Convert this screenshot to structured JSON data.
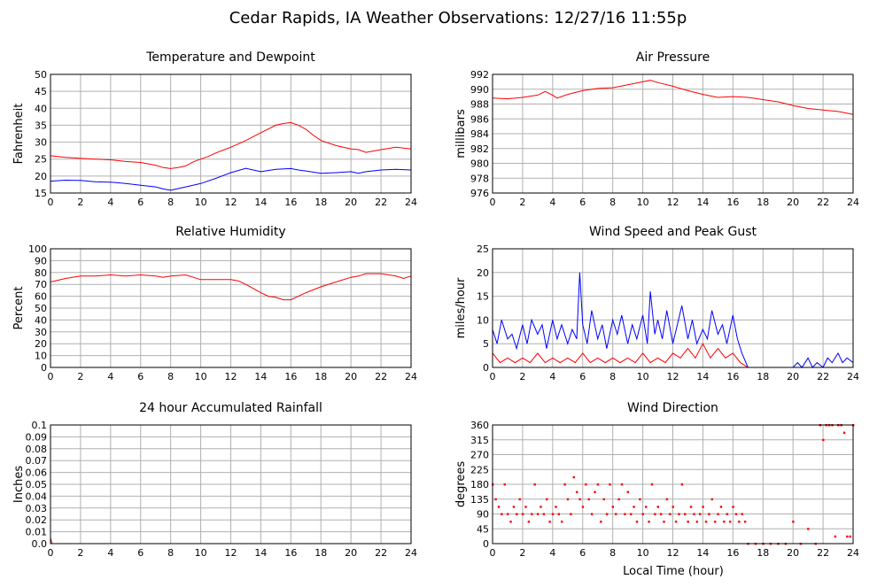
{
  "page_title": "Cedar Rapids, IA Weather Observations: 12/27/16 11:55p",
  "x_axis_label": "Local Time (hour)",
  "chart_data": [
    {
      "type": "line",
      "title": "Temperature and Dewpoint",
      "ylabel": "Fahrenheit",
      "xlim": [
        0,
        24
      ],
      "ylim": [
        15,
        50
      ],
      "x_ticks": [
        0,
        2,
        4,
        6,
        8,
        10,
        12,
        14,
        16,
        18,
        20,
        22,
        24
      ],
      "y_ticks": [
        15,
        20,
        25,
        30,
        35,
        40,
        45,
        50
      ],
      "grid": true,
      "series": [
        {
          "color": "#ff0000",
          "x": [
            0,
            1,
            2,
            3,
            4,
            5,
            6,
            7,
            7.5,
            8,
            8.5,
            9,
            9.5,
            10,
            10.5,
            11,
            12,
            13,
            14,
            15,
            15.5,
            16,
            16.5,
            17,
            17.5,
            18,
            19,
            20,
            20.5,
            21,
            22,
            23,
            24
          ],
          "y": [
            26,
            25.5,
            25.2,
            25,
            24.8,
            24.3,
            24,
            23.2,
            22.5,
            22.2,
            22.5,
            23,
            24.2,
            25,
            25.8,
            26.8,
            28.5,
            30.5,
            32.8,
            35,
            35.5,
            35.8,
            35,
            33.8,
            32,
            30.5,
            29,
            28,
            27.8,
            27,
            27.8,
            28.5,
            28
          ]
        },
        {
          "color": "#0000ff",
          "x": [
            0,
            1,
            2,
            3,
            4,
            5,
            6,
            7,
            7.5,
            8,
            8.5,
            9,
            10,
            11,
            12,
            13,
            14,
            15,
            16,
            16.5,
            17,
            18,
            19,
            20,
            20.5,
            21,
            22,
            23,
            24
          ],
          "y": [
            18.5,
            18.8,
            18.7,
            18.3,
            18.2,
            17.8,
            17.3,
            16.8,
            16.2,
            15.8,
            16.3,
            16.8,
            17.8,
            19.3,
            21,
            22.3,
            21.3,
            22,
            22.2,
            21.8,
            21.5,
            20.8,
            21,
            21.3,
            20.8,
            21.3,
            21.8,
            22,
            21.8
          ]
        }
      ]
    },
    {
      "type": "line",
      "title": "Air Pressure",
      "ylabel": "millibars",
      "xlim": [
        0,
        24
      ],
      "ylim": [
        976,
        992
      ],
      "x_ticks": [
        0,
        2,
        4,
        6,
        8,
        10,
        12,
        14,
        16,
        18,
        20,
        22,
        24
      ],
      "y_ticks": [
        976,
        978,
        980,
        982,
        984,
        986,
        988,
        990,
        992
      ],
      "grid": true,
      "series": [
        {
          "color": "#ff0000",
          "x": [
            0,
            1,
            2,
            3,
            3.5,
            4,
            4.3,
            5,
            6,
            7,
            8,
            9,
            10,
            10.5,
            11,
            12,
            13,
            14,
            15,
            16,
            17,
            18,
            19,
            20,
            21,
            22,
            23,
            24
          ],
          "y": [
            988.8,
            988.7,
            988.9,
            989.2,
            989.7,
            989.2,
            988.8,
            989.3,
            989.8,
            990.1,
            990.2,
            990.6,
            991.0,
            991.2,
            990.9,
            990.4,
            989.8,
            989.3,
            988.9,
            989.0,
            988.9,
            988.6,
            988.3,
            987.8,
            987.4,
            987.2,
            987.0,
            986.6
          ]
        }
      ]
    },
    {
      "type": "line",
      "title": "Relative Humidity",
      "ylabel": "Percent",
      "xlim": [
        0,
        24
      ],
      "ylim": [
        0,
        100
      ],
      "x_ticks": [
        0,
        2,
        4,
        6,
        8,
        10,
        12,
        14,
        16,
        18,
        20,
        22,
        24
      ],
      "y_ticks": [
        0,
        10,
        20,
        30,
        40,
        50,
        60,
        70,
        80,
        90,
        100
      ],
      "grid": true,
      "series": [
        {
          "color": "#ff0000",
          "x": [
            0,
            1,
            2,
            3,
            4,
            5,
            6,
            7,
            7.5,
            8,
            9,
            10,
            11,
            12,
            12.5,
            13,
            14,
            14.5,
            15,
            15.5,
            16,
            16.5,
            17,
            18,
            19,
            20,
            20.5,
            21,
            22,
            23,
            23.5,
            24
          ],
          "y": [
            72,
            75,
            77,
            77,
            78,
            77,
            78,
            77,
            76,
            77,
            78,
            74,
            74,
            74,
            73,
            70,
            63,
            60,
            59,
            57,
            57,
            60,
            63,
            68,
            72,
            76,
            77,
            79,
            79,
            77,
            75,
            77
          ]
        }
      ]
    },
    {
      "type": "line",
      "title": "Wind Speed and Peak Gust",
      "ylabel": "miles/hour",
      "xlim": [
        0,
        24
      ],
      "ylim": [
        0,
        25
      ],
      "x_ticks": [
        0,
        2,
        4,
        6,
        8,
        10,
        12,
        14,
        16,
        18,
        20,
        22,
        24
      ],
      "y_ticks": [
        0,
        5,
        10,
        15,
        20,
        25
      ],
      "grid": true,
      "series": [
        {
          "color": "#0000ff",
          "x": [
            0,
            0.3,
            0.6,
            1,
            1.3,
            1.6,
            2,
            2.3,
            2.6,
            3,
            3.3,
            3.6,
            4,
            4.3,
            4.6,
            5,
            5.3,
            5.6,
            5.8,
            6,
            6.3,
            6.6,
            7,
            7.3,
            7.6,
            8,
            8.3,
            8.6,
            9,
            9.3,
            9.6,
            10,
            10.3,
            10.5,
            10.8,
            11,
            11.3,
            11.6,
            12,
            12.3,
            12.6,
            13,
            13.3,
            13.6,
            14,
            14.3,
            14.6,
            15,
            15.3,
            15.6,
            16,
            16.3,
            16.6,
            17,
            17.5,
            18,
            18.5,
            19,
            19.5,
            20,
            20.3,
            20.6,
            21,
            21.3,
            21.6,
            22,
            22.3,
            22.6,
            23,
            23.3,
            23.6,
            24
          ],
          "y": [
            8,
            5,
            10,
            6,
            7,
            4,
            9,
            5,
            10,
            7,
            9,
            4,
            10,
            6,
            9,
            5,
            8,
            6,
            20,
            9,
            5,
            12,
            6,
            9,
            4,
            10,
            7,
            11,
            5,
            9,
            6,
            11,
            5,
            16,
            7,
            10,
            6,
            12,
            5,
            9,
            13,
            6,
            10,
            5,
            8,
            6,
            12,
            7,
            9,
            5,
            11,
            6,
            3,
            0,
            0,
            0,
            0,
            0,
            0,
            0,
            1,
            0,
            2,
            0,
            1,
            0,
            2,
            1,
            3,
            1,
            2,
            1
          ]
        },
        {
          "color": "#ff0000",
          "x": [
            0,
            0.5,
            1,
            1.5,
            2,
            2.5,
            3,
            3.5,
            4,
            4.5,
            5,
            5.5,
            6,
            6.5,
            7,
            7.5,
            8,
            8.5,
            9,
            9.5,
            10,
            10.5,
            11,
            11.5,
            12,
            12.5,
            13,
            13.5,
            14,
            14.5,
            15,
            15.5,
            16,
            16.5,
            17
          ],
          "y": [
            3,
            1,
            2,
            1,
            2,
            1,
            3,
            1,
            2,
            1,
            2,
            1,
            3,
            1,
            2,
            1,
            2,
            1,
            2,
            1,
            3,
            1,
            2,
            1,
            3,
            2,
            4,
            2,
            5,
            2,
            4,
            2,
            3,
            1,
            0
          ]
        }
      ]
    },
    {
      "type": "line",
      "title": "24 hour Accumulated Rainfall",
      "ylabel": "Inches",
      "xlim": [
        0,
        24
      ],
      "ylim": [
        0,
        0.1
      ],
      "x_ticks": [
        0,
        2,
        4,
        6,
        8,
        10,
        12,
        14,
        16,
        18,
        20,
        22,
        24
      ],
      "y_ticks": [
        "0.0",
        "0.01",
        "0.02",
        "0.03",
        "0.04",
        "0.05",
        "0.06",
        "0.07",
        "0.08",
        "0.09",
        "0.1"
      ],
      "grid": true,
      "series": [
        {
          "color": "#ff0000",
          "x": [
            0,
            0.1,
            24
          ],
          "y": [
            0.005,
            0,
            0
          ]
        }
      ]
    },
    {
      "type": "scatter",
      "title": "Wind Direction",
      "ylabel": "degrees",
      "xlabel": "Local Time (hour)",
      "xlim": [
        0,
        24
      ],
      "ylim": [
        0,
        360
      ],
      "x_ticks": [
        0,
        2,
        4,
        6,
        8,
        10,
        12,
        14,
        16,
        18,
        20,
        22,
        24
      ],
      "y_ticks": [
        0,
        45,
        90,
        135,
        180,
        225,
        270,
        315,
        360
      ],
      "grid": true,
      "series": [
        {
          "color": "#ff0000",
          "x": [
            0,
            0.2,
            0.4,
            0.6,
            0.8,
            1,
            1.2,
            1.4,
            1.6,
            1.8,
            2,
            2.2,
            2.4,
            2.6,
            2.8,
            3,
            3.2,
            3.4,
            3.6,
            3.8,
            4,
            4.2,
            4.4,
            4.6,
            4.8,
            5,
            5.2,
            5.4,
            5.6,
            5.8,
            6,
            6.2,
            6.4,
            6.6,
            6.8,
            7,
            7.2,
            7.4,
            7.6,
            7.8,
            8,
            8.2,
            8.4,
            8.6,
            8.8,
            9,
            9.2,
            9.4,
            9.6,
            9.8,
            10,
            10.2,
            10.4,
            10.6,
            10.8,
            11,
            11.2,
            11.4,
            11.6,
            11.8,
            12,
            12.2,
            12.4,
            12.6,
            12.8,
            13,
            13.2,
            13.4,
            13.6,
            13.8,
            14,
            14.2,
            14.4,
            14.6,
            14.8,
            15,
            15.2,
            15.4,
            15.6,
            15.8,
            16,
            16.2,
            16.4,
            16.6,
            16.8,
            17,
            17.5,
            18,
            18.5,
            19,
            19.5,
            20,
            20.5,
            21,
            21.5,
            21.8,
            22,
            22.2,
            22.4,
            22.6,
            22.8,
            23,
            23.2,
            23.4,
            23.6,
            23.8,
            24
          ],
          "y": [
            180,
            135,
            112,
            90,
            180,
            90,
            67,
            112,
            90,
            135,
            90,
            112,
            67,
            90,
            180,
            90,
            112,
            90,
            135,
            67,
            90,
            112,
            90,
            67,
            180,
            135,
            90,
            202,
            157,
            135,
            112,
            180,
            135,
            90,
            157,
            180,
            67,
            135,
            90,
            180,
            112,
            90,
            135,
            180,
            90,
            157,
            90,
            112,
            67,
            135,
            90,
            112,
            67,
            180,
            90,
            112,
            90,
            67,
            135,
            90,
            112,
            67,
            90,
            180,
            90,
            67,
            112,
            90,
            67,
            90,
            112,
            67,
            90,
            135,
            67,
            90,
            112,
            67,
            90,
            67,
            112,
            90,
            67,
            90,
            67,
            0,
            0,
            0,
            0,
            0,
            0,
            67,
            0,
            45,
            0,
            360,
            315,
            360,
            360,
            360,
            22,
            360,
            360,
            337,
            22,
            22,
            360
          ]
        }
      ]
    }
  ]
}
